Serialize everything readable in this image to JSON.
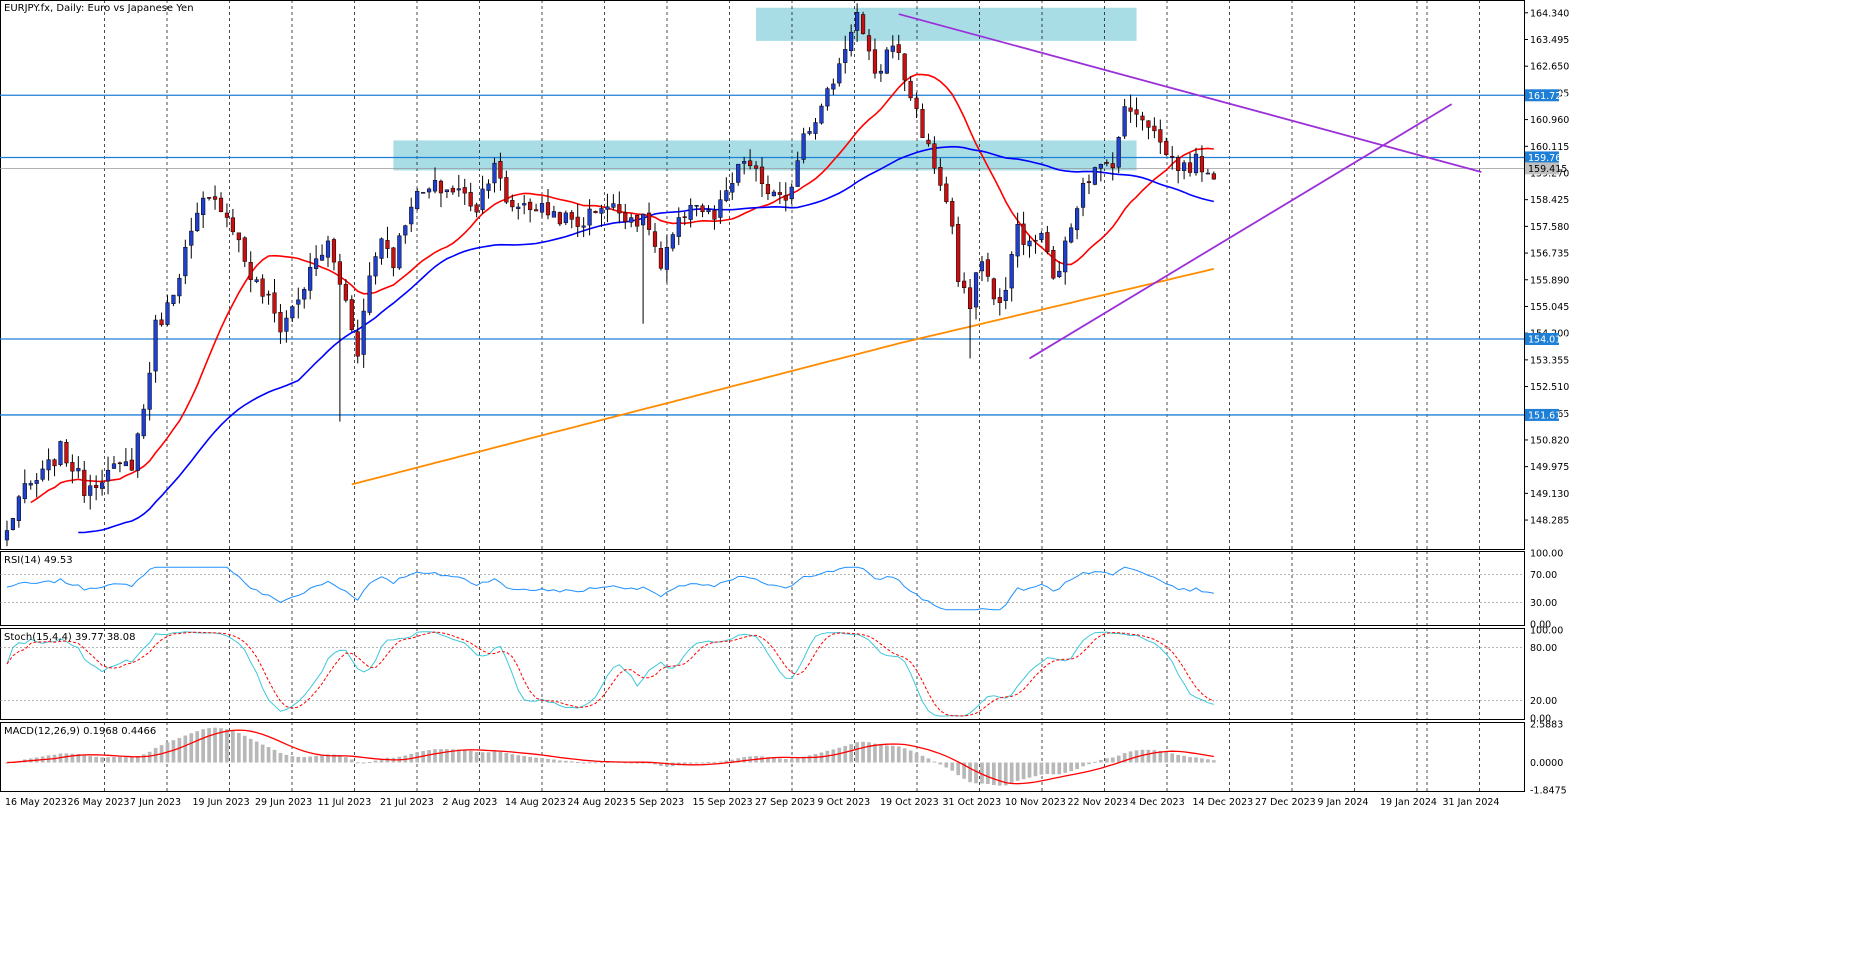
{
  "window": {
    "title": "EURJPY.fx, Daily:  Euro vs Japanese Yen"
  },
  "colors": {
    "bull_candle": "#1f3fcf",
    "bear_candle": "#c81010",
    "ma_fast": "#ff0000",
    "ma_mid": "#0000ff",
    "ma_slow": "#ff8c00",
    "hline": "#1e7fd6",
    "trendline": "#9b30d9",
    "zone": "#a8dde6",
    "rsi_line": "#1e90ff",
    "stoch_main": "#3fc8d8",
    "stoch_signal": "#ff0000",
    "macd_hist": "#b8b8b8",
    "macd_signal": "#ff0000",
    "grid": "#000000"
  },
  "chart_data": [
    {
      "type": "candlestick",
      "pane": "main",
      "title": "EURJPY.fx, Daily:  Euro vs Japanese Yen",
      "ylim": [
        147.4,
        164.65
      ],
      "y_ticks": [
        "164.340",
        "163.495",
        "162.650",
        "161.805",
        "160.960",
        "160.115",
        "159.270",
        "158.425",
        "157.580",
        "156.735",
        "155.890",
        "155.045",
        "154.200",
        "153.355",
        "152.510",
        "151.665",
        "150.820",
        "149.975",
        "149.130",
        "148.285"
      ],
      "x_labels": [
        "16 May 2023",
        "26 May 2023",
        "7 Jun 2023",
        "19 Jun 2023",
        "29 Jun 2023",
        "11 Jul 2023",
        "21 Jul 2023",
        "2 Aug 2023",
        "14 Aug 2023",
        "24 Aug 2023",
        "5 Sep 2023",
        "15 Sep 2023",
        "27 Sep 2023",
        "9 Oct 2023",
        "19 Oct 2023",
        "31 Oct 2023",
        "10 Nov 2023",
        "22 Nov 2023",
        "4 Dec 2023",
        "14 Dec 2023",
        "27 Dec 2023",
        "9 Jan 2024",
        "19 Jan 2024",
        "31 Jan 2024"
      ],
      "horizontal_levels": [
        {
          "value": 161.729,
          "label": "161.729"
        },
        {
          "value": 159.761,
          "label": "159.761"
        },
        {
          "value": 154.015,
          "label": "154.015"
        },
        {
          "value": 151.612,
          "label": "151.612"
        }
      ],
      "current_price": {
        "value": 159.415,
        "label": "159.415"
      },
      "resistance_zones": [
        {
          "x_start": 126,
          "x_end": 190,
          "y_low": 163.45,
          "y_high": 164.5
        },
        {
          "x_start": 65,
          "x_end": 190,
          "y_low": 159.35,
          "y_high": 160.3
        }
      ],
      "trendlines": [
        {
          "name": "upper",
          "x": [
            150,
            248
          ],
          "y": [
            164.3,
            159.3
          ]
        },
        {
          "name": "lower",
          "x": [
            172,
            243
          ],
          "y": [
            153.4,
            161.45
          ]
        }
      ],
      "moving_average_anchors": {
        "ma_fast_period_label": "",
        "note": ""
      }
    },
    {
      "type": "line",
      "pane": "rsi",
      "title": "RSI(14) 49.53",
      "ylim": [
        0,
        100
      ],
      "y_ticks": [
        "100.00",
        "70.00",
        "30.00",
        "0.00"
      ],
      "levels": [
        70,
        30
      ]
    },
    {
      "type": "line",
      "pane": "stoch",
      "title": "Stoch(15,4,4) 39.77 38.08",
      "ylim": [
        0,
        100
      ],
      "y_ticks": [
        "100.00",
        "80.00",
        "20.00",
        "0.00"
      ],
      "levels": [
        80,
        20
      ]
    },
    {
      "type": "bar",
      "pane": "macd",
      "title": "MACD(12,26,9) 0.1968 0.4466",
      "ylim": [
        -1.8475,
        2.5883
      ],
      "y_ticks": [
        "2.5883",
        "0.0000",
        "-1.8475"
      ]
    }
  ]
}
